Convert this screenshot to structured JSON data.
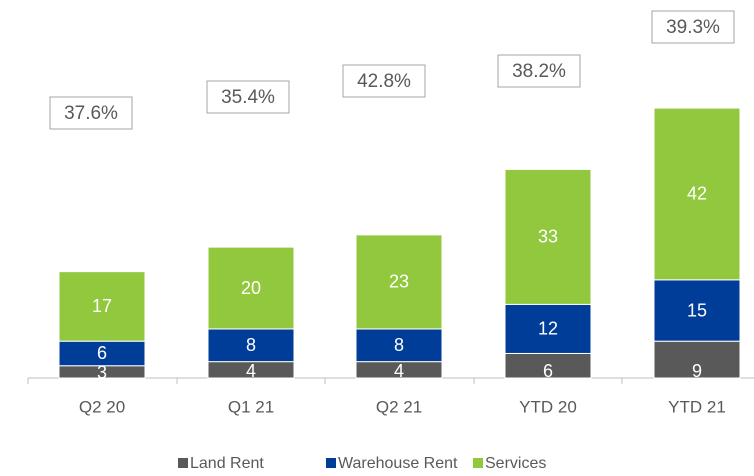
{
  "chart_data": {
    "type": "stacked_bar",
    "categories": [
      "Q2 20",
      "Q1 21",
      "Q2 21",
      "YTD 20",
      "YTD 21"
    ],
    "series": [
      {
        "name": "Land Rent",
        "color": "#595959",
        "values": [
          3,
          4,
          4,
          6,
          9
        ]
      },
      {
        "name": "Warehouse Rent",
        "color": "#003d99",
        "values": [
          6,
          8,
          8,
          12,
          15
        ]
      },
      {
        "name": "Services",
        "color": "#92c83e",
        "values": [
          17,
          20,
          23,
          33,
          42
        ]
      }
    ],
    "annotations": [
      "37.6%",
      "35.4%",
      "42.8%",
      "38.2%",
      "39.3%"
    ],
    "legend": "bottom"
  }
}
